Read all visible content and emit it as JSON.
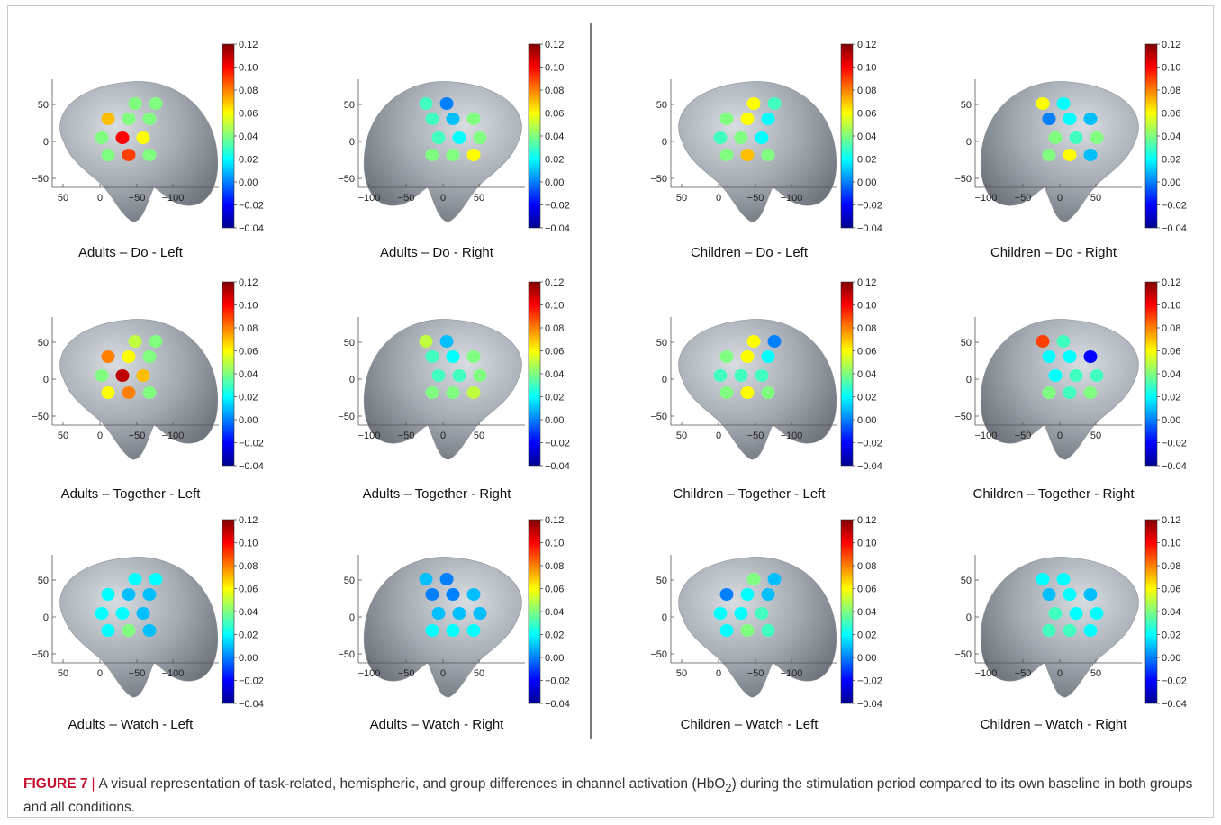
{
  "figure": {
    "label": "FIGURE 7",
    "separator": "|",
    "caption_pre": "A visual representation of task-related, hemispheric, and group differences in channel activation (HbO",
    "caption_sub": "2",
    "caption_post": ") during the stimulation period compared to its own baseline in both groups and all conditions."
  },
  "colorbar": {
    "ticks": [
      "0.12",
      "0.10",
      "0.08",
      "0.06",
      "0.04",
      "0.02",
      "0.00",
      "−0.02",
      "−0.04"
    ],
    "range": [
      -0.04,
      0.12
    ]
  },
  "axes": {
    "y_ticks": [
      "50",
      "0",
      "−50"
    ],
    "x_ticks_left": [
      "50",
      "0",
      "−50",
      "−100"
    ],
    "x_ticks_right": [
      "−100",
      "−50",
      "0",
      "50"
    ]
  },
  "chart_data": [
    {
      "type": "heatmap",
      "title": "Adults – Do - Left",
      "values": [
        0.04,
        0.04,
        0.07,
        0.04,
        0.04,
        0.04,
        0.1,
        0.06,
        0.04,
        0.09,
        0.04
      ]
    },
    {
      "type": "heatmap",
      "title": "Adults – Do - Right",
      "values": [
        0.0,
        0.03,
        0.04,
        0.01,
        0.03,
        0.04,
        0.02,
        0.03,
        0.06,
        0.04,
        0.04
      ]
    },
    {
      "type": "heatmap",
      "title": "Children – Do - Left",
      "values": [
        0.06,
        0.03,
        0.04,
        0.06,
        0.02,
        0.03,
        0.04,
        0.02,
        0.04,
        0.07,
        0.04
      ]
    },
    {
      "type": "heatmap",
      "title": "Children – Do - Right",
      "values": [
        0.02,
        0.06,
        0.01,
        0.02,
        0.0,
        0.04,
        0.03,
        0.04,
        0.01,
        0.06,
        0.04
      ]
    },
    {
      "type": "heatmap",
      "title": "Adults – Together - Left",
      "values": [
        0.05,
        0.04,
        0.08,
        0.06,
        0.04,
        0.04,
        0.11,
        0.07,
        0.06,
        0.08,
        0.04
      ]
    },
    {
      "type": "heatmap",
      "title": "Adults – Together - Right",
      "values": [
        0.01,
        0.05,
        0.04,
        0.02,
        0.03,
        0.04,
        0.03,
        0.03,
        0.05,
        0.04,
        0.04
      ]
    },
    {
      "type": "heatmap",
      "title": "Children – Together - Left",
      "values": [
        0.06,
        0.0,
        0.04,
        0.06,
        0.02,
        0.03,
        0.03,
        0.03,
        0.04,
        0.06,
        0.04
      ]
    },
    {
      "type": "heatmap",
      "title": "Children – Together - Right",
      "values": [
        0.03,
        0.09,
        -0.02,
        0.02,
        0.02,
        0.03,
        0.03,
        0.02,
        0.04,
        0.03,
        0.04
      ]
    },
    {
      "type": "heatmap",
      "title": "Adults – Watch - Left",
      "values": [
        0.02,
        0.02,
        0.02,
        0.01,
        0.01,
        0.02,
        0.02,
        0.01,
        0.02,
        0.04,
        0.01
      ]
    },
    {
      "type": "heatmap",
      "title": "Adults – Watch - Right",
      "values": [
        0.0,
        0.01,
        0.01,
        0.0,
        0.0,
        0.01,
        0.01,
        0.01,
        0.02,
        0.02,
        0.02
      ]
    },
    {
      "type": "heatmap",
      "title": "Children – Watch - Left",
      "values": [
        0.04,
        0.01,
        0.0,
        0.02,
        0.01,
        0.02,
        0.02,
        0.03,
        0.02,
        0.04,
        0.03
      ]
    },
    {
      "type": "heatmap",
      "title": "Children – Watch - Right",
      "values": [
        0.02,
        0.02,
        0.01,
        0.02,
        0.01,
        0.02,
        0.02,
        0.03,
        0.02,
        0.03,
        0.03
      ]
    }
  ]
}
